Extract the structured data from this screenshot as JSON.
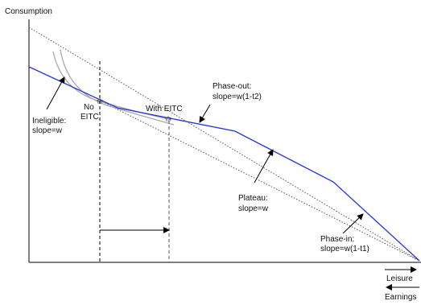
{
  "axes": {
    "y_label": "Consumption",
    "x_label_right": "Leisure",
    "x_label_left": "Earnings"
  },
  "labels": {
    "ineligible": [
      "Ineligible:",
      "slope=w"
    ],
    "no_eitc": [
      "No",
      "EITC"
    ],
    "with_eitc": "With EITC",
    "phase_out": [
      "Phase-out:",
      "slope=w(1-t2)"
    ],
    "plateau": [
      "Plateau:",
      "slope=w"
    ],
    "phase_in": [
      "Phase-in:",
      "slope=w(1-t1)"
    ]
  },
  "colors": {
    "budget_line": "#2233dd",
    "indifference_curve": "#aaaaaa",
    "dotted_line": "#555555",
    "axis": "#000000"
  }
}
